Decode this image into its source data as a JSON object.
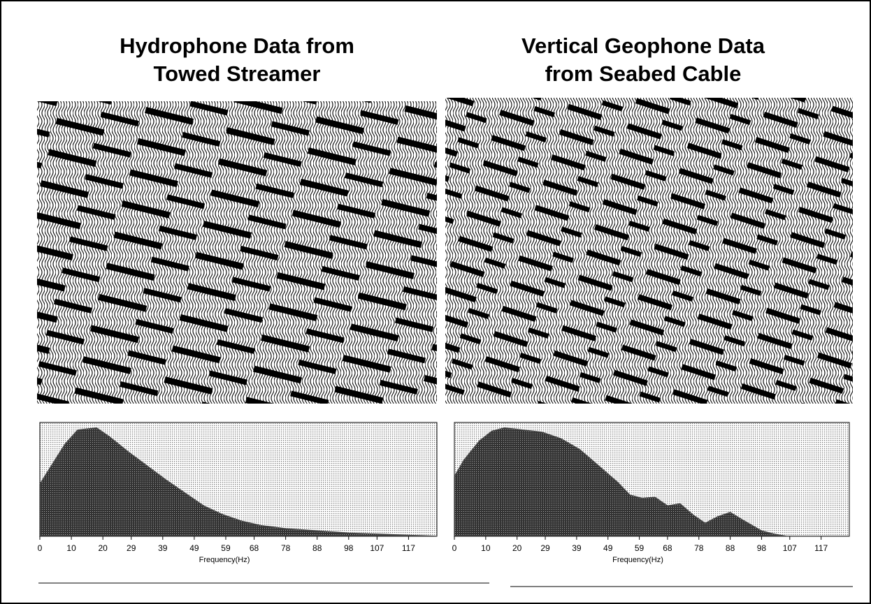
{
  "chart_data": [
    {
      "type": "area",
      "title": [
        "Hydrophone Data from",
        "Towed Streamer"
      ],
      "xlabel": "Frequency(Hz)",
      "x": [
        0,
        3,
        8,
        12,
        18,
        22,
        28,
        34,
        40,
        46,
        52,
        58,
        64,
        70,
        78,
        88,
        98,
        107,
        117,
        126
      ],
      "values": [
        48,
        62,
        85,
        98,
        100,
        92,
        78,
        65,
        52,
        40,
        28,
        20,
        14,
        10,
        7,
        5,
        3,
        2,
        1,
        0
      ],
      "color": "#4a4a4a",
      "xlim": [
        0,
        126
      ],
      "ylim": [
        0,
        105
      ],
      "xticks": [
        0,
        10,
        20,
        29,
        39,
        49,
        59,
        68,
        78,
        88,
        98,
        107,
        117
      ]
    },
    {
      "type": "area",
      "title": [
        "Vertical Geophone Data",
        "from Seabed Cable"
      ],
      "xlabel": "Frequency(Hz)",
      "x": [
        0,
        3,
        8,
        12,
        16,
        22,
        28,
        34,
        40,
        46,
        52,
        56,
        60,
        64,
        68,
        72,
        76,
        80,
        84,
        88,
        92,
        98,
        102,
        106,
        126
      ],
      "values": [
        55,
        70,
        88,
        97,
        100,
        98,
        96,
        90,
        80,
        65,
        50,
        38,
        35,
        36,
        28,
        30,
        20,
        12,
        18,
        22,
        15,
        5,
        2,
        0,
        0
      ],
      "color": "#4a4a4a",
      "xlim": [
        0,
        126
      ],
      "ylim": [
        0,
        105
      ],
      "xticks": [
        0,
        10,
        20,
        29,
        39,
        49,
        59,
        68,
        78,
        88,
        98,
        107,
        117
      ]
    }
  ]
}
